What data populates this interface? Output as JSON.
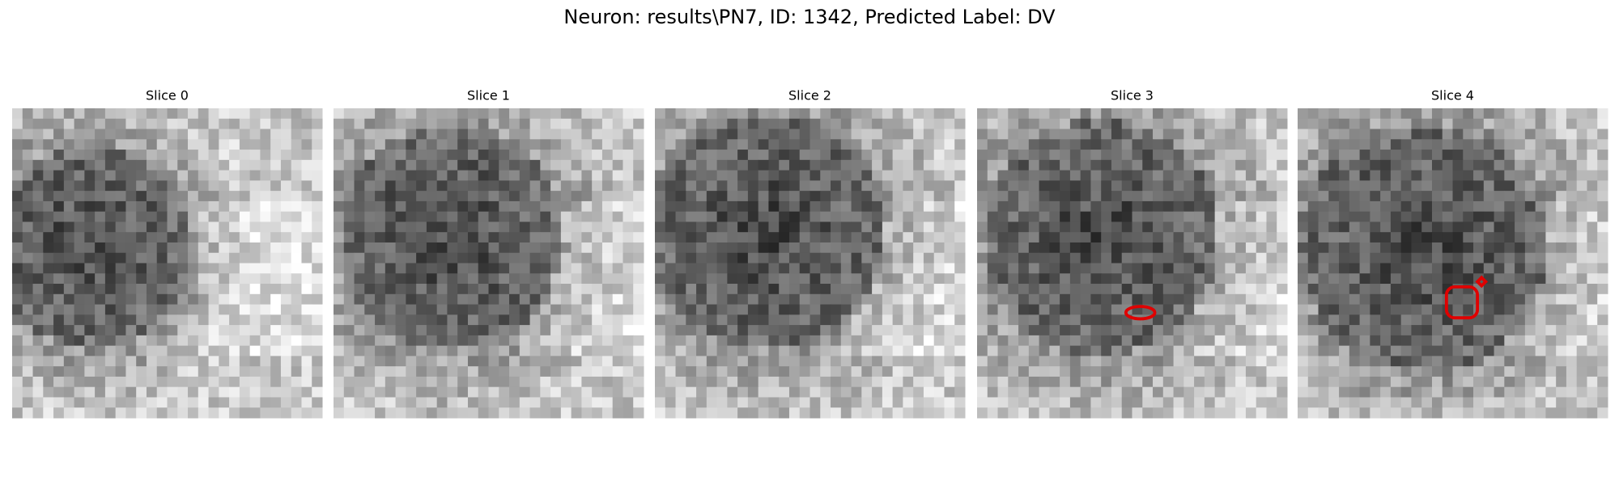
{
  "title": "Neuron: results\\PN7, ID: 1342, Predicted Label: DV",
  "panels": [
    {
      "title": "Slice 0"
    },
    {
      "title": "Slice 1"
    },
    {
      "title": "Slice 2"
    },
    {
      "title": "Slice 3"
    },
    {
      "title": "Slice 4"
    }
  ]
}
